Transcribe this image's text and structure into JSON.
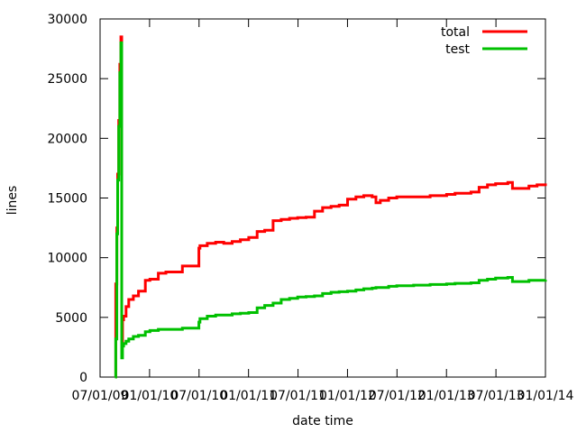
{
  "chart_data": {
    "type": "line",
    "title": "",
    "xlabel": "date time",
    "ylabel": "lines",
    "x_tick_labels": [
      "07/01/09",
      "01/01/10",
      "07/01/10",
      "01/01/11",
      "07/01/11",
      "01/01/12",
      "07/01/12",
      "01/01/13",
      "07/01/13",
      "01/01/14"
    ],
    "y_ticks": [
      0,
      5000,
      10000,
      15000,
      20000,
      25000,
      30000
    ],
    "y_tick_labels": [
      "0",
      "5000",
      "10000",
      "15000",
      "20000",
      "25000",
      "30000"
    ],
    "ylim": [
      0,
      30000
    ],
    "xlim": [
      "2009-07-01",
      "2014-01-01"
    ],
    "grid": false,
    "legend_position": "top-right",
    "series": [
      {
        "name": "total",
        "color": "#ff0000",
        "x": [
          "2009-08-25",
          "2009-08-28",
          "2009-09-01",
          "2009-09-04",
          "2009-09-08",
          "2009-09-12",
          "2009-09-16",
          "2009-09-19",
          "2009-09-22",
          "2009-09-26",
          "2009-10-05",
          "2009-10-15",
          "2009-11-01",
          "2009-11-20",
          "2009-12-15",
          "2010-01-01",
          "2010-02-01",
          "2010-03-01",
          "2010-05-01",
          "2010-07-01",
          "2010-07-05",
          "2010-08-01",
          "2010-09-01",
          "2010-10-01",
          "2010-11-01",
          "2010-12-01",
          "2011-01-01",
          "2011-02-01",
          "2011-03-01",
          "2011-04-01",
          "2011-05-01",
          "2011-06-01",
          "2011-07-01",
          "2011-08-01",
          "2011-09-01",
          "2011-10-01",
          "2011-11-01",
          "2011-12-01",
          "2012-01-01",
          "2012-02-01",
          "2012-03-01",
          "2012-04-01",
          "2012-04-15",
          "2012-05-01",
          "2012-06-01",
          "2012-07-01",
          "2012-09-01",
          "2012-11-01",
          "2013-01-01",
          "2013-02-01",
          "2013-04-01",
          "2013-05-01",
          "2013-06-01",
          "2013-07-01",
          "2013-08-01",
          "2013-08-15",
          "2013-09-01",
          "2013-10-01",
          "2013-11-01",
          "2013-12-01",
          "2014-01-01"
        ],
        "y": [
          0,
          7800,
          12500,
          17000,
          21500,
          26200,
          28500,
          3000,
          4800,
          5100,
          5900,
          6500,
          6800,
          7200,
          8100,
          8200,
          8700,
          8800,
          9300,
          10800,
          11000,
          11200,
          11300,
          11200,
          11350,
          11500,
          11700,
          12200,
          12300,
          13100,
          13200,
          13300,
          13350,
          13400,
          13900,
          14200,
          14300,
          14400,
          14900,
          15100,
          15200,
          15100,
          14600,
          14800,
          15000,
          15100,
          15100,
          15200,
          15300,
          15400,
          15500,
          15900,
          16100,
          16200,
          16200,
          16300,
          15800,
          15800,
          16000,
          16100,
          16000
        ]
      },
      {
        "name": "test",
        "color": "#00c000",
        "x": [
          "2009-08-25",
          "2009-08-28",
          "2009-09-01",
          "2009-09-04",
          "2009-09-08",
          "2009-09-12",
          "2009-09-16",
          "2009-09-19",
          "2009-09-22",
          "2009-09-26",
          "2009-10-05",
          "2009-10-15",
          "2009-11-01",
          "2009-11-20",
          "2009-12-15",
          "2010-01-01",
          "2010-02-01",
          "2010-03-01",
          "2010-05-01",
          "2010-07-01",
          "2010-07-05",
          "2010-08-01",
          "2010-09-01",
          "2010-10-01",
          "2010-11-01",
          "2010-12-01",
          "2011-01-01",
          "2011-02-01",
          "2011-03-01",
          "2011-04-01",
          "2011-05-01",
          "2011-06-01",
          "2011-07-01",
          "2011-08-01",
          "2011-09-01",
          "2011-10-01",
          "2011-11-01",
          "2011-12-01",
          "2012-01-01",
          "2012-02-01",
          "2012-03-01",
          "2012-04-01",
          "2012-04-15",
          "2012-05-01",
          "2012-06-01",
          "2012-07-01",
          "2012-09-01",
          "2012-11-01",
          "2013-01-01",
          "2013-02-01",
          "2013-04-01",
          "2013-05-01",
          "2013-06-01",
          "2013-07-01",
          "2013-08-01",
          "2013-08-15",
          "2013-09-01",
          "2013-10-01",
          "2013-11-01",
          "2013-12-01",
          "2014-01-01"
        ],
        "y": [
          0,
          3200,
          12000,
          16500,
          21000,
          25500,
          28000,
          1600,
          2600,
          2800,
          3000,
          3200,
          3400,
          3500,
          3800,
          3900,
          4000,
          4000,
          4100,
          4600,
          4900,
          5100,
          5200,
          5200,
          5300,
          5350,
          5400,
          5800,
          6000,
          6200,
          6500,
          6600,
          6700,
          6750,
          6800,
          7000,
          7100,
          7150,
          7200,
          7300,
          7400,
          7450,
          7500,
          7500,
          7600,
          7650,
          7700,
          7750,
          7800,
          7850,
          7900,
          8100,
          8200,
          8300,
          8300,
          8350,
          8000,
          8000,
          8100,
          8100,
          8150
        ]
      }
    ]
  }
}
